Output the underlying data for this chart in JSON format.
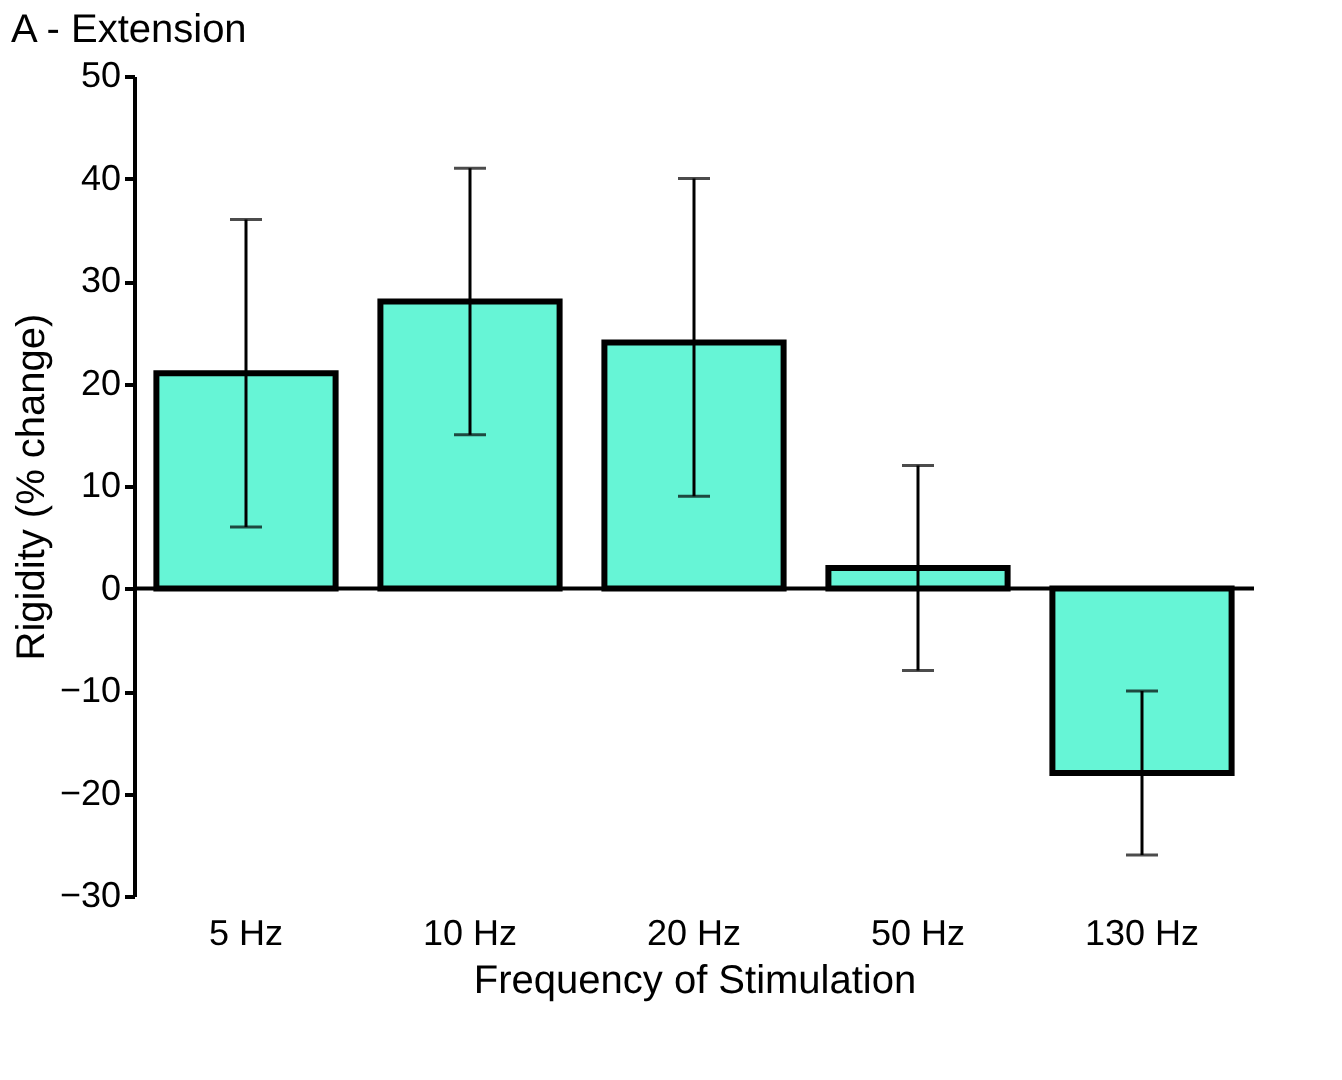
{
  "chart_data": {
    "type": "bar",
    "title": "A - Extension",
    "xlabel": "Frequency of Stimulation",
    "ylabel": "Rigidity (% change)",
    "categories": [
      "5 Hz",
      "10 Hz",
      "20 Hz",
      "50 Hz",
      "130 Hz"
    ],
    "values": [
      21,
      28,
      24,
      2,
      -18
    ],
    "errors": [
      [
        6,
        36
      ],
      [
        15,
        41
      ],
      [
        9,
        40
      ],
      [
        -8,
        12
      ],
      [
        -26,
        -10
      ]
    ],
    "color": "#66f5d6",
    "ylim": [
      -30,
      50
    ],
    "yticks": [
      -30,
      -20,
      -10,
      0,
      10,
      20,
      30,
      40,
      50
    ],
    "grid": false,
    "ref_lines": [
      {
        "axis": "y",
        "value": 0,
        "color": "#000000"
      }
    ]
  }
}
